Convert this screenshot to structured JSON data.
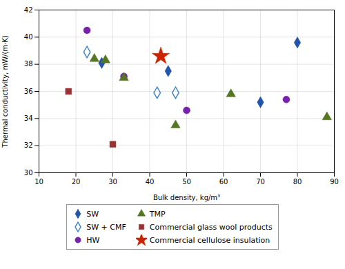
{
  "chart_data": {
    "type": "scatter",
    "xlabel": "Bulk density, kg/m³",
    "ylabel": "Thermal conductivity, mW/(m·K)",
    "xlim": [
      10,
      90
    ],
    "ylim": [
      30,
      42
    ],
    "xticks": [
      10,
      20,
      30,
      40,
      50,
      60,
      70,
      80,
      90
    ],
    "yticks": [
      30,
      32,
      34,
      36,
      38,
      40,
      42
    ],
    "grid": true,
    "legend": "bottom",
    "series": [
      {
        "name": "SW",
        "color": "#2255aa",
        "marker": "diamond",
        "x": [
          27,
          45,
          70,
          80
        ],
        "values": [
          38.1,
          37.5,
          35.2,
          39.6
        ]
      },
      {
        "name": "SW + CMF",
        "color": "#4488cc",
        "marker": "diamond_open",
        "x": [
          23,
          42,
          47
        ],
        "values": [
          38.9,
          35.9,
          35.9
        ]
      },
      {
        "name": "HW",
        "color": "#7722aa",
        "marker": "circle",
        "x": [
          23,
          33,
          50,
          77
        ],
        "values": [
          40.5,
          37.1,
          34.6,
          35.4
        ]
      },
      {
        "name": "TMP",
        "color": "#557722",
        "marker": "triangle",
        "x": [
          25,
          28,
          33,
          47,
          62,
          88
        ],
        "values": [
          38.4,
          38.3,
          37.0,
          33.5,
          35.8,
          34.1
        ]
      },
      {
        "name": "Commercial glass wool products",
        "color": "#993333",
        "marker": "square",
        "x": [
          18,
          30
        ],
        "values": [
          36.0,
          32.1
        ]
      },
      {
        "name": "Commercial cellulose insulation",
        "color": "#cc2200",
        "marker": "star",
        "x": [
          43
        ],
        "values": [
          38.6
        ]
      }
    ]
  }
}
